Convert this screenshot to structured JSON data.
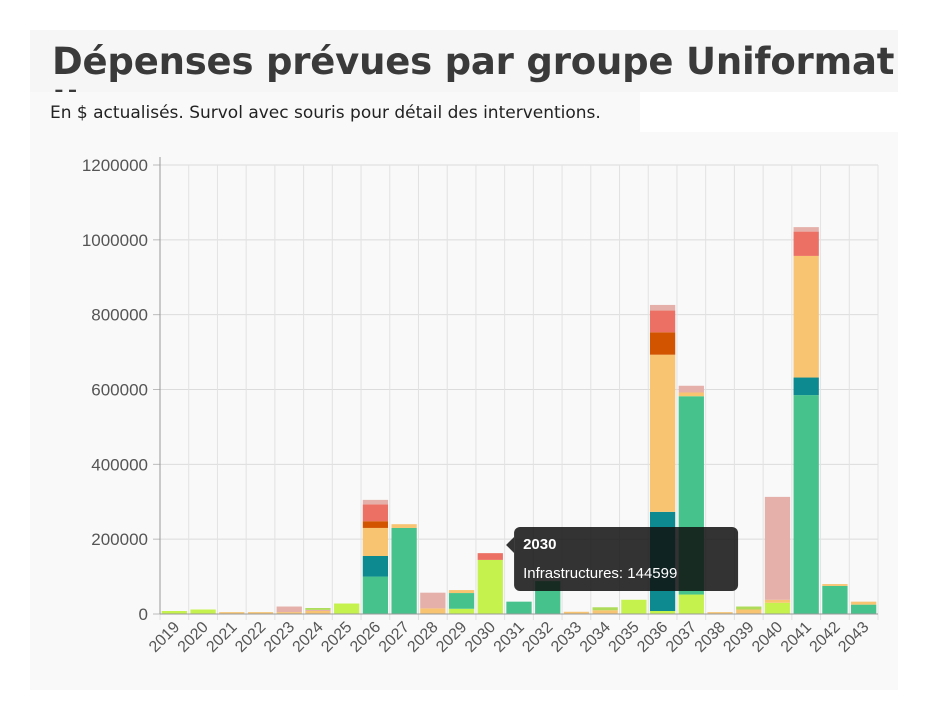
{
  "header": {
    "title": "Dépenses prévues par groupe Uniformat II",
    "subtitle": "En $ actualisés. Survol avec souris pour détail des interventions."
  },
  "tooltip": {
    "category": "2030",
    "series": "Infrastructures",
    "value": 144599,
    "text": "Infrastructures: 144599"
  },
  "chart_data": {
    "type": "bar",
    "stacked": true,
    "categories": [
      "2019",
      "2020",
      "2021",
      "2022",
      "2023",
      "2024",
      "2025",
      "2026",
      "2027",
      "2028",
      "2029",
      "2030",
      "2031",
      "2032",
      "2033",
      "2034",
      "2035",
      "2036",
      "2037",
      "2038",
      "2039",
      "2040",
      "2041",
      "2042",
      "2043"
    ],
    "ylim": [
      0,
      1200000
    ],
    "yticks": [
      0,
      200000,
      400000,
      600000,
      800000,
      1000000,
      1200000
    ],
    "grid": true,
    "series": [
      {
        "color": "#c6f24d",
        "values": [
          8000,
          12000,
          0,
          0,
          0,
          0,
          28000,
          0,
          0,
          0,
          14000,
          144599,
          0,
          0,
          0,
          0,
          38000,
          8000,
          52000,
          0,
          0,
          30000,
          0,
          0,
          0
        ]
      },
      {
        "color": "#46c38d",
        "values": [
          0,
          0,
          0,
          0,
          0,
          0,
          0,
          100000,
          230000,
          0,
          42000,
          0,
          33000,
          88000,
          0,
          0,
          0,
          0,
          530000,
          0,
          0,
          0,
          585000,
          75000,
          25000
        ]
      },
      {
        "color": "#0d8a8f",
        "values": [
          0,
          0,
          0,
          0,
          0,
          0,
          0,
          55000,
          0,
          0,
          0,
          0,
          0,
          0,
          0,
          0,
          0,
          265000,
          0,
          0,
          0,
          0,
          47000,
          0,
          0
        ]
      },
      {
        "color": "#f8c471",
        "values": [
          0,
          0,
          5000,
          5000,
          5000,
          8000,
          0,
          75000,
          10000,
          15000,
          8000,
          0,
          0,
          0,
          6000,
          10000,
          0,
          420000,
          10000,
          5000,
          12000,
          8000,
          325000,
          5000,
          8000
        ]
      },
      {
        "color": "#d35400",
        "values": [
          0,
          0,
          0,
          0,
          0,
          0,
          0,
          18000,
          0,
          0,
          0,
          0,
          0,
          0,
          0,
          0,
          0,
          60000,
          0,
          0,
          0,
          0,
          0,
          0,
          0
        ]
      },
      {
        "color": "#ec7063",
        "values": [
          0,
          0,
          0,
          0,
          0,
          0,
          0,
          45000,
          0,
          0,
          0,
          18000,
          0,
          0,
          0,
          0,
          0,
          58000,
          0,
          0,
          0,
          0,
          65000,
          0,
          0
        ]
      },
      {
        "color": "#e6b0aa",
        "values": [
          0,
          0,
          0,
          0,
          15000,
          3000,
          0,
          12000,
          0,
          42000,
          0,
          0,
          0,
          0,
          0,
          0,
          0,
          15000,
          18000,
          0,
          0,
          275000,
          12000,
          0,
          0
        ]
      },
      {
        "color": "#aedc5a",
        "values": [
          0,
          0,
          0,
          0,
          0,
          5000,
          0,
          0,
          0,
          0,
          0,
          0,
          0,
          0,
          0,
          8000,
          0,
          0,
          0,
          0,
          8000,
          0,
          0,
          0,
          0
        ]
      }
    ]
  }
}
